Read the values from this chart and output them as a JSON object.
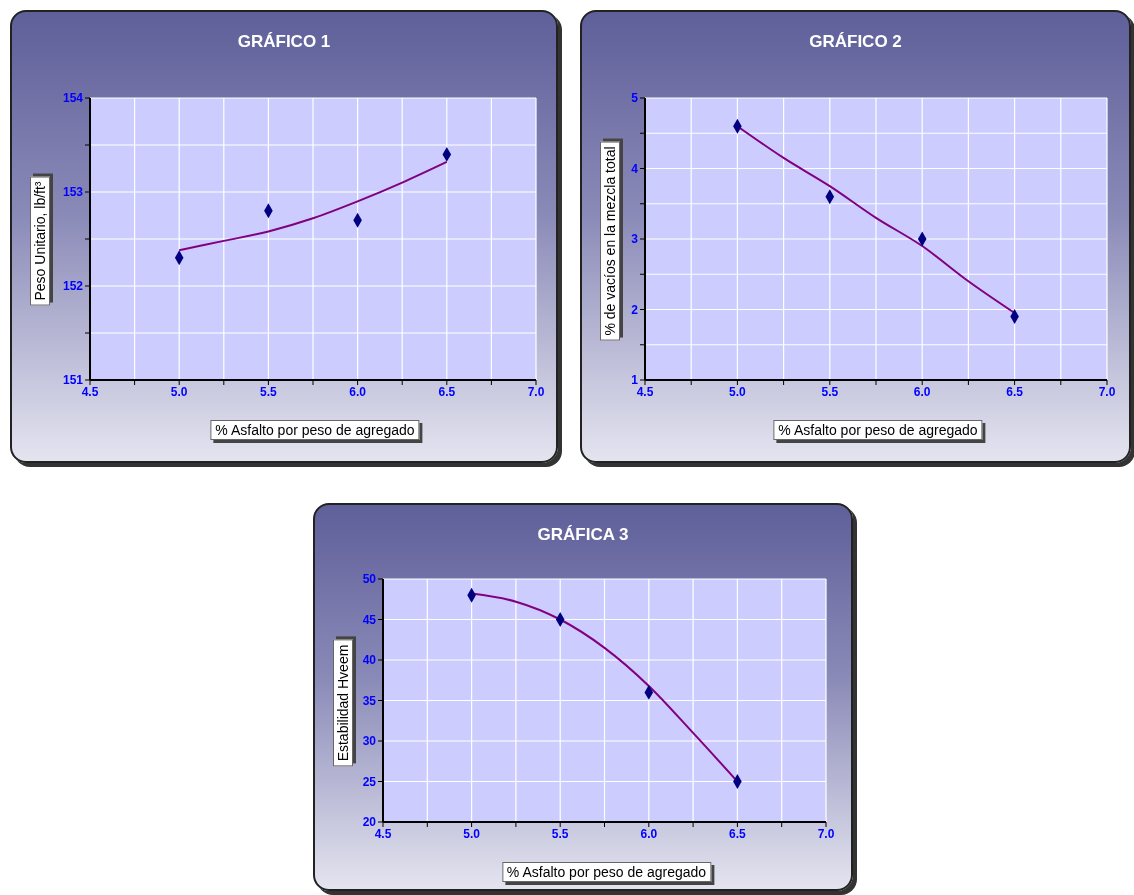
{
  "chart_data": [
    {
      "type": "scatter",
      "title": "GRÁFICO 1",
      "xlabel": "% Asfalto por peso de agregado",
      "ylabel": "Peso Unitario, lb/ft³",
      "xlim": [
        4.5,
        7.0
      ],
      "xticks": [
        {
          "value": 4.5,
          "label": "4.5"
        },
        {
          "value": 4.75,
          "label": null
        },
        {
          "value": 5,
          "label": "5.0"
        },
        {
          "value": 5.25,
          "label": null
        },
        {
          "value": 5.5,
          "label": "5.5"
        },
        {
          "value": 5.75,
          "label": null
        },
        {
          "value": 6,
          "label": "6.0"
        },
        {
          "value": 6.25,
          "label": null
        },
        {
          "value": 6.5,
          "label": "6.5"
        },
        {
          "value": 6.75,
          "label": null
        },
        {
          "value": 7,
          "label": "7.0"
        }
      ],
      "ylim": [
        151,
        154
      ],
      "yticks": [
        151,
        {
          "value": 151.5,
          "label": null
        },
        152,
        {
          "value": 152.5,
          "label": null
        },
        153,
        {
          "value": 153.5,
          "label": null
        },
        154
      ],
      "grid": true,
      "series": [
        {
          "type": "scatter",
          "marker": "diamond",
          "color": "#000080",
          "x": [
            5.0,
            5.5,
            6.0,
            6.5
          ],
          "values": [
            152.3,
            152.8,
            152.7,
            153.4
          ]
        },
        {
          "type": "line",
          "marker": "none",
          "color": "#800080",
          "x": [
            5.0,
            5.25,
            5.5,
            5.75,
            6.0,
            6.25,
            6.5
          ],
          "values": [
            152.38,
            152.48,
            152.58,
            152.72,
            152.9,
            153.1,
            153.32
          ]
        }
      ]
    },
    {
      "type": "scatter",
      "title": "GRÁFICO 2",
      "xlabel": "% Asfalto por peso de agregado",
      "ylabel": "% de vacíos en la mezcla total",
      "xlim": [
        4.5,
        7.0
      ],
      "xticks": [
        {
          "value": 4.5,
          "label": "4.5"
        },
        {
          "value": 4.75,
          "label": null
        },
        {
          "value": 5,
          "label": "5.0"
        },
        {
          "value": 5.25,
          "label": null
        },
        {
          "value": 5.5,
          "label": "5.5"
        },
        {
          "value": 5.75,
          "label": null
        },
        {
          "value": 6,
          "label": "6.0"
        },
        {
          "value": 6.25,
          "label": null
        },
        {
          "value": 6.5,
          "label": "6.5"
        },
        {
          "value": 6.75,
          "label": null
        },
        {
          "value": 7,
          "label": "7.0"
        }
      ],
      "ylim": [
        1,
        5
      ],
      "yticks": [
        1,
        {
          "value": 1.5,
          "label": null
        },
        2,
        {
          "value": 2.5,
          "label": null
        },
        3,
        {
          "value": 3.5,
          "label": null
        },
        4,
        {
          "value": 4.5,
          "label": null
        },
        5
      ],
      "grid": true,
      "series": [
        {
          "type": "scatter",
          "marker": "diamond",
          "color": "#000080",
          "x": [
            5.0,
            5.5,
            6.0,
            6.5
          ],
          "values": [
            4.6,
            3.6,
            3.0,
            1.9
          ]
        },
        {
          "type": "line",
          "marker": "none",
          "color": "#800080",
          "x": [
            5.0,
            5.25,
            5.5,
            5.75,
            6.0,
            6.25,
            6.5
          ],
          "values": [
            4.6,
            4.15,
            3.75,
            3.3,
            2.9,
            2.4,
            1.95
          ]
        }
      ]
    },
    {
      "type": "scatter",
      "title": "GRÁFICA 3",
      "xlabel": "% Asfalto por peso de agregado",
      "ylabel": "Estabilidad Hveem",
      "xlim": [
        4.5,
        7.0
      ],
      "xticks": [
        {
          "value": 4.5,
          "label": "4.5"
        },
        {
          "value": 4.75,
          "label": null
        },
        {
          "value": 5,
          "label": "5.0"
        },
        {
          "value": 5.25,
          "label": null
        },
        {
          "value": 5.5,
          "label": "5.5"
        },
        {
          "value": 5.75,
          "label": null
        },
        {
          "value": 6,
          "label": "6.0"
        },
        {
          "value": 6.25,
          "label": null
        },
        {
          "value": 6.5,
          "label": "6.5"
        },
        {
          "value": 6.75,
          "label": null
        },
        {
          "value": 7,
          "label": "7.0"
        }
      ],
      "ylim": [
        20,
        50
      ],
      "yticks": [
        20,
        25,
        30,
        35,
        40,
        45,
        50
      ],
      "grid": true,
      "series": [
        {
          "type": "scatter",
          "marker": "diamond",
          "color": "#000080",
          "x": [
            5.0,
            5.5,
            6.0,
            6.5
          ],
          "values": [
            48,
            45,
            36,
            25
          ]
        },
        {
          "type": "line",
          "marker": "none",
          "color": "#800080",
          "x": [
            5.0,
            5.25,
            5.5,
            5.75,
            6.0,
            6.25,
            6.5
          ],
          "values": [
            48.2,
            47.2,
            45,
            41.5,
            36.8,
            31,
            25
          ]
        }
      ]
    }
  ]
}
